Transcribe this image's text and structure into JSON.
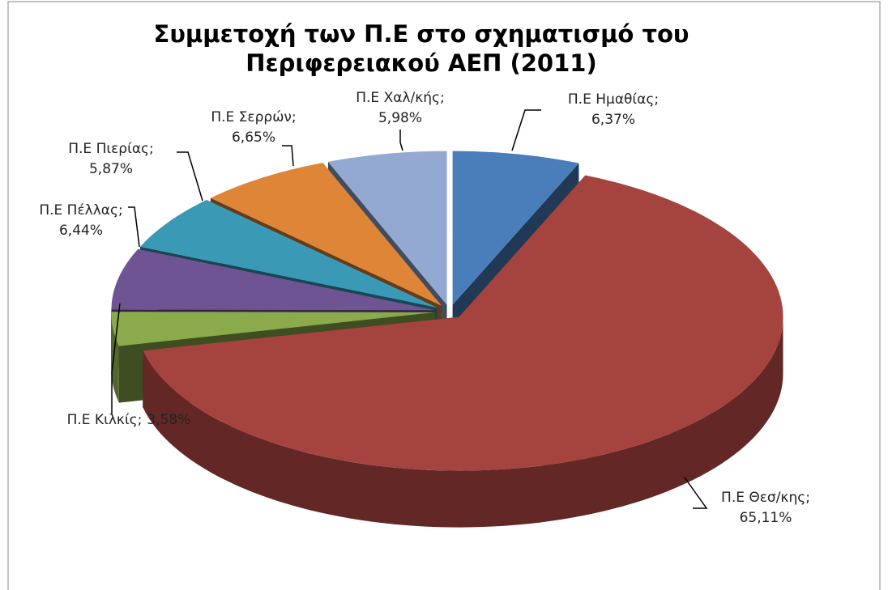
{
  "chart_data": {
    "type": "pie3d",
    "title": [
      "Συμμετοχή των Π.Ε στο σχηματισμό του",
      "Περιφερειακού ΑΕΠ (2011)"
    ],
    "label_separator": ";",
    "categories": [
      "Π.Ε Ημαθίας",
      "Π.Ε Θεσ/κης",
      "Π.Ε Κιλκίς",
      "Π.Ε Πέλλας",
      "Π.Ε Πιερίας",
      "Π.Ε Σερρών",
      "Π.Ε Χαλ/κής"
    ],
    "values": [
      6.37,
      65.11,
      3.58,
      6.44,
      5.87,
      6.65,
      5.98
    ],
    "value_labels": [
      "6,37%",
      "65,11%",
      "3,58%",
      "6,44%",
      "5,87%",
      "6,65%",
      "5,98%"
    ],
    "colors": [
      "#4a7ebb",
      "#a5433f",
      "#8aaa4c",
      "#6f5494",
      "#3a9ab6",
      "#de8538",
      "#93a9d2"
    ]
  }
}
